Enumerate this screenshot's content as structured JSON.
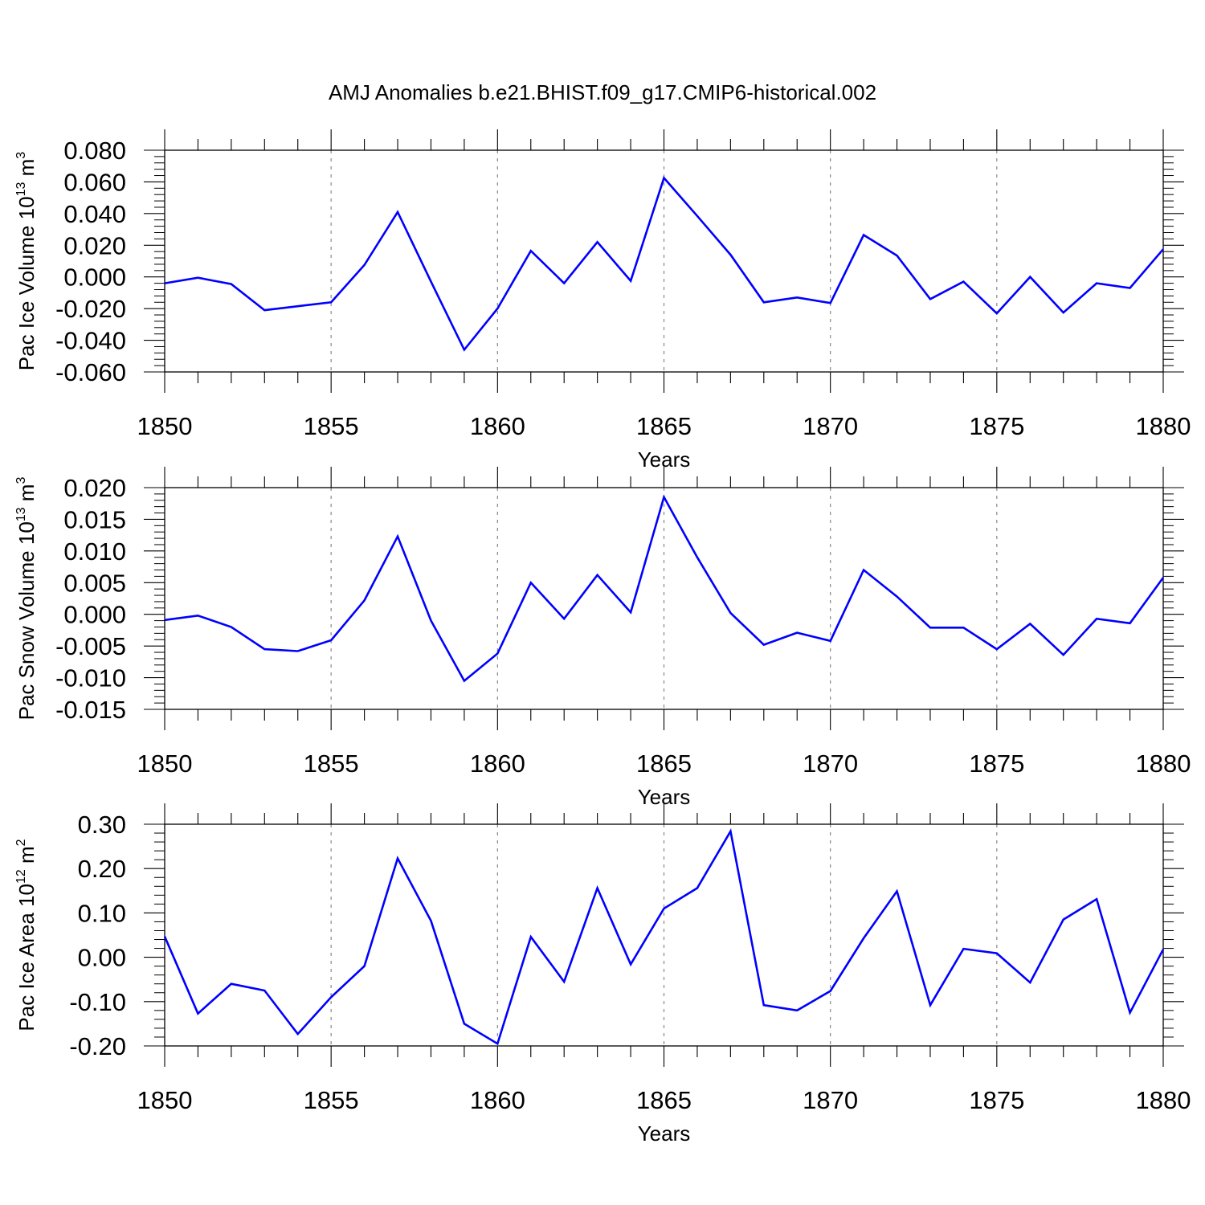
{
  "title": "AMJ Anomalies b.e21.BHIST.f09_g17.CMIP6-historical.002",
  "line_color": "#0000ff",
  "chart_data": [
    {
      "type": "line",
      "title": "",
      "xlabel": "Years",
      "ylabel": "Pac Ice Volume",
      "ylabel_unit_base": "10",
      "ylabel_unit_exp": "13",
      "ylabel_unit_m": "m",
      "ylabel_unit_m_exp": "3",
      "xlim": [
        1850,
        1880
      ],
      "ylim": [
        -0.06,
        0.08
      ],
      "x_ticks": [
        1850,
        1855,
        1860,
        1865,
        1870,
        1875,
        1880
      ],
      "x_tick_labels": [
        "1850",
        "1855",
        "1860",
        "1865",
        "1870",
        "1875",
        "1880"
      ],
      "y_ticks": [
        -0.06,
        -0.04,
        -0.02,
        0.0,
        0.02,
        0.04,
        0.06,
        0.08
      ],
      "y_tick_labels": [
        "-0.060",
        "-0.040",
        "-0.020",
        "0.000",
        "0.020",
        "0.040",
        "0.060",
        "0.080"
      ],
      "grid": "vertical dashed at major x ticks",
      "series": [
        {
          "x": [
            1850,
            1851,
            1852,
            1853,
            1854,
            1855,
            1856,
            1857,
            1858,
            1859,
            1860,
            1861,
            1862,
            1863,
            1864,
            1865,
            1866,
            1867,
            1868,
            1869,
            1870,
            1871,
            1872,
            1873,
            1874,
            1875,
            1876,
            1877,
            1878,
            1879,
            1880
          ],
          "values": [
            -0.004,
            -0.0005,
            -0.0045,
            -0.021,
            -0.0185,
            -0.016,
            0.0075,
            0.041,
            -0.003,
            -0.046,
            -0.02,
            0.0165,
            -0.004,
            0.022,
            -0.0025,
            0.0625,
            0.0385,
            0.014,
            -0.016,
            -0.013,
            -0.0165,
            0.0265,
            0.0135,
            -0.014,
            -0.003,
            -0.023,
            0.0,
            -0.0225,
            -0.004,
            -0.007,
            0.0175
          ]
        }
      ]
    },
    {
      "type": "line",
      "title": "",
      "xlabel": "Years",
      "ylabel": "Pac Snow Volume",
      "ylabel_unit_base": "10",
      "ylabel_unit_exp": "13",
      "ylabel_unit_m": "m",
      "ylabel_unit_m_exp": "3",
      "xlim": [
        1850,
        1880
      ],
      "ylim": [
        -0.015,
        0.02
      ],
      "x_ticks": [
        1850,
        1855,
        1860,
        1865,
        1870,
        1875,
        1880
      ],
      "x_tick_labels": [
        "1850",
        "1855",
        "1860",
        "1865",
        "1870",
        "1875",
        "1880"
      ],
      "y_ticks": [
        -0.015,
        -0.01,
        -0.005,
        0.0,
        0.005,
        0.01,
        0.015,
        0.02
      ],
      "y_tick_labels": [
        "-0.015",
        "-0.010",
        "-0.005",
        "0.000",
        "0.005",
        "0.010",
        "0.015",
        "0.020"
      ],
      "grid": "vertical dashed at major x ticks",
      "series": [
        {
          "x": [
            1850,
            1851,
            1852,
            1853,
            1854,
            1855,
            1856,
            1857,
            1858,
            1859,
            1860,
            1861,
            1862,
            1863,
            1864,
            1865,
            1866,
            1867,
            1868,
            1869,
            1870,
            1871,
            1872,
            1873,
            1874,
            1875,
            1876,
            1877,
            1878,
            1879,
            1880
          ],
          "values": [
            -0.0009,
            -0.0002,
            -0.002,
            -0.0055,
            -0.0058,
            -0.0041,
            0.0022,
            0.0123,
            -0.001,
            -0.0105,
            -0.0062,
            0.005,
            -0.0007,
            0.0062,
            0.0003,
            0.0185,
            0.009,
            0.0002,
            -0.0048,
            -0.0029,
            -0.0042,
            0.007,
            0.0028,
            -0.0021,
            -0.0021,
            -0.0055,
            -0.0015,
            -0.0064,
            -0.0007,
            -0.0014,
            0.0058
          ]
        }
      ]
    },
    {
      "type": "line",
      "title": "",
      "xlabel": "Years",
      "ylabel": "Pac Ice Area",
      "ylabel_unit_base": "10",
      "ylabel_unit_exp": "12",
      "ylabel_unit_m": "m",
      "ylabel_unit_m_exp": "2",
      "xlim": [
        1850,
        1880
      ],
      "ylim": [
        -0.2,
        0.3
      ],
      "x_ticks": [
        1850,
        1855,
        1860,
        1865,
        1870,
        1875,
        1880
      ],
      "x_tick_labels": [
        "1850",
        "1855",
        "1860",
        "1865",
        "1870",
        "1875",
        "1880"
      ],
      "y_ticks": [
        -0.2,
        -0.1,
        0.0,
        0.1,
        0.2,
        0.3
      ],
      "y_tick_labels": [
        "-0.20",
        "-0.10",
        "0.00",
        "0.10",
        "0.20",
        "0.30"
      ],
      "grid": "vertical dashed at major x ticks",
      "series": [
        {
          "x": [
            1850,
            1851,
            1852,
            1853,
            1854,
            1855,
            1856,
            1857,
            1858,
            1859,
            1860,
            1861,
            1862,
            1863,
            1864,
            1865,
            1866,
            1867,
            1868,
            1869,
            1870,
            1871,
            1872,
            1873,
            1874,
            1875,
            1876,
            1877,
            1878,
            1879,
            1880
          ],
          "values": [
            0.047,
            -0.127,
            -0.06,
            -0.075,
            -0.173,
            -0.09,
            -0.02,
            0.223,
            0.082,
            -0.15,
            -0.195,
            0.046,
            -0.055,
            0.156,
            -0.016,
            0.11,
            0.156,
            0.284,
            -0.108,
            -0.12,
            -0.076,
            0.043,
            0.149,
            -0.108,
            0.019,
            0.009,
            -0.057,
            0.085,
            0.131,
            -0.125,
            0.018
          ]
        }
      ]
    }
  ]
}
